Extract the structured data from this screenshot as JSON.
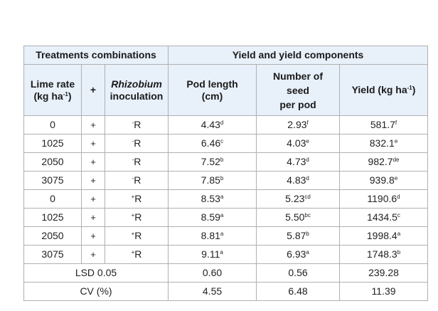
{
  "table": {
    "group_header_treatments": "Treatments combinations",
    "group_header_yield": "Yield and yield components",
    "col_lime_line1": "Lime rate",
    "col_lime_line2": "(kg ha",
    "col_lime_sup": "-1",
    "col_lime_close": ")",
    "col_plus": "+",
    "col_rhizo_line1": "Rhizobium",
    "col_rhizo_line2": "inoculation",
    "col_pod_line1": "Pod length",
    "col_pod_line2": "(cm)",
    "col_seed_line1": "Number of",
    "col_seed_line2": "seed",
    "col_seed_line3": "per pod",
    "col_yield": "Yield (kg ha",
    "col_yield_sup": "-1",
    "col_yield_close": ")",
    "rows": [
      {
        "lime": "0",
        "plus": "+",
        "rh_sup": "-",
        "rh": "R",
        "pod": "4.43",
        "pod_sup": "d",
        "seed": "2.93",
        "seed_sup": "f",
        "yield": "581.7",
        "yield_sup": "f"
      },
      {
        "lime": "1025",
        "plus": "+",
        "rh_sup": "-",
        "rh": "R",
        "pod": "6.46",
        "pod_sup": "c",
        "seed": "4.03",
        "seed_sup": "e",
        "yield": "832.1",
        "yield_sup": "e"
      },
      {
        "lime": "2050",
        "plus": "+",
        "rh_sup": "-",
        "rh": "R",
        "pod": "7.52",
        "pod_sup": "b",
        "seed": "4.73",
        "seed_sup": "d",
        "yield": "982.7",
        "yield_sup": "de"
      },
      {
        "lime": "3075",
        "plus": "+",
        "rh_sup": "-",
        "rh": "R",
        "pod": "7.85",
        "pod_sup": "b",
        "seed": "4.83",
        "seed_sup": "d",
        "yield": "939.8",
        "yield_sup": "e"
      },
      {
        "lime": "0",
        "plus": "+",
        "rh_sup": "+",
        "rh": "R",
        "pod": "8.53",
        "pod_sup": "a",
        "seed": "5.23",
        "seed_sup": "cd",
        "yield": "1190.6",
        "yield_sup": "d"
      },
      {
        "lime": "1025",
        "plus": "+",
        "rh_sup": "+",
        "rh": "R",
        "pod": "8.59",
        "pod_sup": "a",
        "seed": "5.50",
        "seed_sup": "bc",
        "yield": "1434.5",
        "yield_sup": "c"
      },
      {
        "lime": "2050",
        "plus": "+",
        "rh_sup": "+",
        "rh": "R",
        "pod": "8.81",
        "pod_sup": "a",
        "seed": "5.87",
        "seed_sup": "b",
        "yield": "1998.4",
        "yield_sup": "a"
      },
      {
        "lime": "3075",
        "plus": "+",
        "rh_sup": "+",
        "rh": "R",
        "pod": "9.11",
        "pod_sup": "a",
        "seed": "6.93",
        "seed_sup": "a",
        "yield": "1748.3",
        "yield_sup": "b"
      }
    ],
    "lsd": {
      "label": "LSD 0.05",
      "pod": "0.60",
      "seed": "0.56",
      "yield": "239.28"
    },
    "cv": {
      "label": "CV (%)",
      "pod": "4.55",
      "seed": "6.48",
      "yield": "11.39"
    }
  }
}
